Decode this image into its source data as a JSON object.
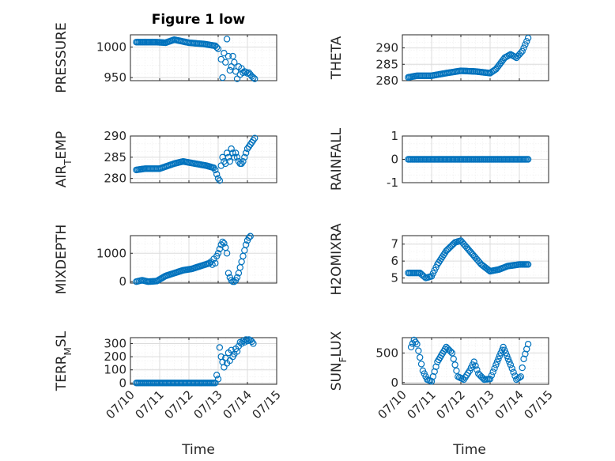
{
  "figure": {
    "title": "Figure 1 low",
    "xlabel": "Time",
    "xticks": [
      "07/10",
      "07/11",
      "07/12",
      "07/13",
      "07/14",
      "07/15"
    ]
  },
  "chart_data": [
    {
      "type": "scatter",
      "ylabel": "PRESSURE",
      "ylabel_base": "PRESSURE",
      "ylabel_sub": "",
      "ylabel_rest": "",
      "xlim": [
        0,
        5
      ],
      "ylim": [
        945,
        1020
      ],
      "yticks": [
        950,
        1000
      ],
      "color": "#0072BD",
      "grid": true,
      "anchors": [
        [
          0.2,
          1008
        ],
        [
          0.9,
          1008
        ],
        [
          1.2,
          1007
        ],
        [
          1.5,
          1012
        ],
        [
          2.0,
          1007
        ],
        [
          2.5,
          1005
        ],
        [
          2.9,
          1002
        ],
        [
          3.0,
          997
        ]
      ],
      "scatter_points": [
        [
          3.1,
          980
        ],
        [
          3.15,
          950
        ],
        [
          3.2,
          990
        ],
        [
          3.25,
          975
        ],
        [
          3.3,
          1013
        ],
        [
          3.35,
          985
        ],
        [
          3.4,
          962
        ],
        [
          3.45,
          968
        ],
        [
          3.5,
          985
        ],
        [
          3.55,
          975
        ],
        [
          3.6,
          960
        ],
        [
          3.65,
          948
        ],
        [
          3.7,
          968
        ],
        [
          3.75,
          955
        ],
        [
          3.8,
          965
        ],
        [
          3.85,
          958
        ],
        [
          3.9,
          960
        ],
        [
          3.95,
          959
        ],
        [
          4.0,
          957
        ],
        [
          4.05,
          958
        ],
        [
          4.1,
          955
        ],
        [
          4.15,
          952
        ],
        [
          4.2,
          950
        ],
        [
          4.25,
          948
        ]
      ]
    },
    {
      "type": "scatter",
      "ylabel": "THETA",
      "ylabel_base": "THETA",
      "ylabel_sub": "",
      "ylabel_rest": "",
      "xlim": [
        0,
        5
      ],
      "ylim": [
        280,
        294
      ],
      "yticks": [
        280,
        285,
        290
      ],
      "color": "#0072BD",
      "grid": true,
      "anchors": [
        [
          0.2,
          281
        ],
        [
          0.5,
          281.5
        ],
        [
          1.0,
          281.5
        ],
        [
          1.5,
          282.3
        ],
        [
          2.0,
          283
        ],
        [
          2.5,
          282.8
        ],
        [
          3.0,
          282.3
        ],
        [
          3.2,
          283.5
        ],
        [
          3.5,
          287
        ],
        [
          3.7,
          288
        ],
        [
          3.9,
          287
        ],
        [
          4.1,
          289
        ],
        [
          4.3,
          293
        ]
      ],
      "scatter_points": []
    },
    {
      "type": "scatter",
      "ylabel": "AIR_TEMP",
      "ylabel_base": "AIR",
      "ylabel_sub": "T",
      "ylabel_rest": "EMP",
      "xlim": [
        0,
        5
      ],
      "ylim": [
        279,
        290
      ],
      "yticks": [
        280,
        285,
        290
      ],
      "color": "#0072BD",
      "grid": true,
      "anchors": [
        [
          0.2,
          282
        ],
        [
          0.5,
          282.3
        ],
        [
          1.0,
          282.3
        ],
        [
          1.5,
          283.5
        ],
        [
          1.8,
          284
        ],
        [
          2.2,
          283.5
        ],
        [
          2.6,
          283
        ],
        [
          2.85,
          282.5
        ]
      ],
      "scatter_points": [
        [
          2.9,
          282
        ],
        [
          2.95,
          281
        ],
        [
          3.0,
          280
        ],
        [
          3.05,
          279.5
        ],
        [
          3.1,
          283
        ],
        [
          3.15,
          285
        ],
        [
          3.2,
          284
        ],
        [
          3.25,
          283.5
        ],
        [
          3.3,
          286
        ],
        [
          3.35,
          285
        ],
        [
          3.4,
          284
        ],
        [
          3.45,
          287
        ],
        [
          3.5,
          286
        ],
        [
          3.55,
          285
        ],
        [
          3.6,
          286
        ],
        [
          3.65,
          285
        ],
        [
          3.7,
          284
        ],
        [
          3.75,
          283.5
        ],
        [
          3.8,
          283.5
        ],
        [
          3.85,
          284
        ],
        [
          3.9,
          285
        ],
        [
          3.95,
          286
        ],
        [
          4.0,
          287
        ],
        [
          4.05,
          287.5
        ],
        [
          4.1,
          288
        ],
        [
          4.15,
          288.5
        ],
        [
          4.2,
          289
        ],
        [
          4.25,
          289.5
        ]
      ]
    },
    {
      "type": "scatter",
      "ylabel": "RAINFALL",
      "ylabel_base": "RAINFALL",
      "ylabel_sub": "",
      "ylabel_rest": "",
      "xlim": [
        0,
        5
      ],
      "ylim": [
        -1,
        1
      ],
      "yticks": [
        -1,
        0,
        1
      ],
      "color": "#0072BD",
      "grid": true,
      "anchors": [
        [
          0.2,
          0
        ],
        [
          4.3,
          0
        ]
      ],
      "scatter_points": []
    },
    {
      "type": "scatter",
      "ylabel": "MIXDEPTH",
      "ylabel_base": "MIXDEPTH",
      "ylabel_sub": "",
      "ylabel_rest": "",
      "xlim": [
        0,
        5
      ],
      "ylim": [
        -50,
        1620
      ],
      "yticks": [
        0,
        1000
      ],
      "color": "#0072BD",
      "grid": true,
      "anchors": [
        [
          0.2,
          0
        ],
        [
          0.4,
          50
        ],
        [
          0.6,
          0
        ],
        [
          0.9,
          20
        ],
        [
          1.2,
          200
        ],
        [
          1.5,
          300
        ],
        [
          1.8,
          400
        ],
        [
          2.1,
          450
        ],
        [
          2.4,
          550
        ],
        [
          2.7,
          650
        ]
      ],
      "scatter_points": [
        [
          2.75,
          700
        ],
        [
          2.8,
          600
        ],
        [
          2.85,
          800
        ],
        [
          2.9,
          650
        ],
        [
          2.95,
          900
        ],
        [
          3.0,
          1000
        ],
        [
          3.05,
          1150
        ],
        [
          3.1,
          1300
        ],
        [
          3.15,
          1400
        ],
        [
          3.2,
          1350
        ],
        [
          3.25,
          1200
        ],
        [
          3.3,
          1000
        ],
        [
          3.35,
          300
        ],
        [
          3.4,
          150
        ],
        [
          3.45,
          50
        ],
        [
          3.5,
          0
        ],
        [
          3.55,
          0
        ],
        [
          3.6,
          50
        ],
        [
          3.65,
          150
        ],
        [
          3.7,
          300
        ],
        [
          3.75,
          500
        ],
        [
          3.8,
          700
        ],
        [
          3.85,
          900
        ],
        [
          3.9,
          1100
        ],
        [
          3.95,
          1300
        ],
        [
          4.0,
          1450
        ],
        [
          4.05,
          1550
        ],
        [
          4.1,
          1600
        ]
      ]
    },
    {
      "type": "scatter",
      "ylabel": "H2OMIXRA",
      "ylabel_base": "H2OMIXRA",
      "ylabel_sub": "",
      "ylabel_rest": "",
      "xlim": [
        0,
        5
      ],
      "ylim": [
        4.7,
        7.5
      ],
      "yticks": [
        5,
        6,
        7
      ],
      "color": "#0072BD",
      "grid": true,
      "anchors": [
        [
          0.2,
          5.3
        ],
        [
          0.6,
          5.3
        ],
        [
          0.8,
          5.0
        ],
        [
          1.0,
          5.1
        ],
        [
          1.2,
          5.8
        ],
        [
          1.5,
          6.6
        ],
        [
          1.8,
          7.1
        ],
        [
          2.0,
          7.2
        ],
        [
          2.2,
          6.8
        ],
        [
          2.5,
          6.2
        ],
        [
          2.7,
          5.8
        ],
        [
          3.0,
          5.4
        ],
        [
          3.3,
          5.5
        ],
        [
          3.6,
          5.7
        ],
        [
          4.0,
          5.8
        ],
        [
          4.3,
          5.8
        ]
      ],
      "scatter_points": []
    },
    {
      "type": "scatter",
      "ylabel": "TERR_MSL",
      "ylabel_base": "TERR",
      "ylabel_sub": "M",
      "ylabel_rest": "SL",
      "xlim": [
        0,
        5
      ],
      "ylim": [
        -10,
        345
      ],
      "yticks": [
        0,
        100,
        200,
        300
      ],
      "color": "#0072BD",
      "grid": true,
      "anchors": [
        [
          0.2,
          0
        ],
        [
          2.9,
          0
        ]
      ],
      "scatter_points": [
        [
          2.95,
          60
        ],
        [
          3.0,
          30
        ],
        [
          3.05,
          270
        ],
        [
          3.1,
          200
        ],
        [
          3.15,
          160
        ],
        [
          3.2,
          120
        ],
        [
          3.25,
          190
        ],
        [
          3.3,
          150
        ],
        [
          3.35,
          230
        ],
        [
          3.4,
          170
        ],
        [
          3.45,
          250
        ],
        [
          3.5,
          200
        ],
        [
          3.55,
          220
        ],
        [
          3.6,
          260
        ],
        [
          3.65,
          240
        ],
        [
          3.7,
          280
        ],
        [
          3.75,
          310
        ],
        [
          3.8,
          300
        ],
        [
          3.85,
          320
        ],
        [
          3.9,
          310
        ],
        [
          3.95,
          330
        ],
        [
          4.0,
          320
        ],
        [
          4.05,
          330
        ],
        [
          4.1,
          325
        ],
        [
          4.15,
          315
        ],
        [
          4.2,
          300
        ]
      ]
    },
    {
      "type": "scatter",
      "ylabel": "SUN_FLUX",
      "ylabel_base": "SUN",
      "ylabel_sub": "F",
      "ylabel_rest": "LUX",
      "xlim": [
        0,
        5
      ],
      "ylim": [
        -30,
        760
      ],
      "yticks": [
        0,
        500
      ],
      "color": "#0072BD",
      "grid": true,
      "anchors": [
        [
          0.3,
          600
        ],
        [
          0.4,
          720
        ],
        [
          0.5,
          650
        ],
        [
          0.7,
          200
        ],
        [
          0.85,
          50
        ],
        [
          1.0,
          20
        ],
        [
          1.2,
          350
        ],
        [
          1.5,
          600
        ],
        [
          1.7,
          500
        ],
        [
          1.9,
          100
        ],
        [
          2.1,
          50
        ],
        [
          2.3,
          200
        ],
        [
          2.45,
          350
        ],
        [
          2.6,
          150
        ],
        [
          2.8,
          50
        ],
        [
          3.0,
          60
        ],
        [
          3.2,
          300
        ],
        [
          3.45,
          600
        ],
        [
          3.7,
          300
        ],
        [
          3.9,
          50
        ],
        [
          4.05,
          100
        ],
        [
          4.15,
          400
        ],
        [
          4.3,
          650
        ]
      ],
      "scatter_points": []
    }
  ]
}
